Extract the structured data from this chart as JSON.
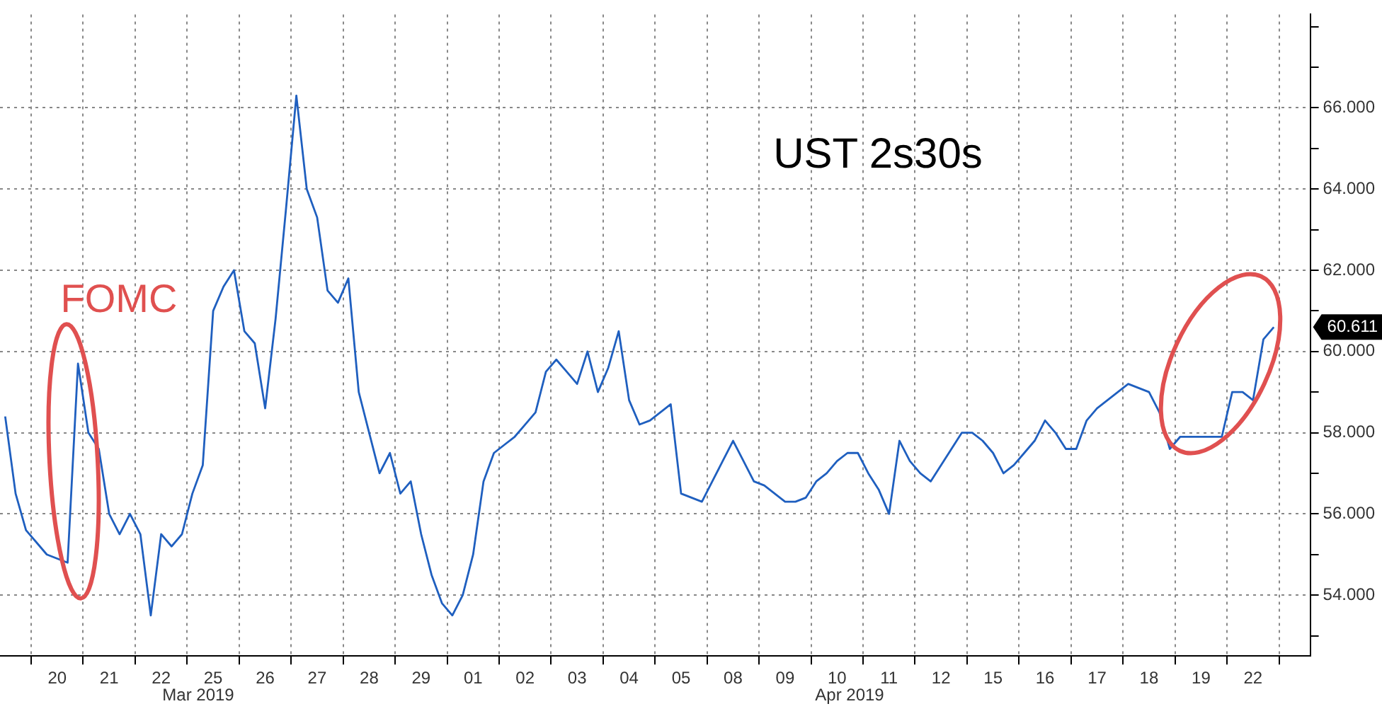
{
  "chart_data": {
    "type": "line",
    "title": "UST 2s30s",
    "categories": [
      null,
      null,
      null,
      null,
      null,
      "20",
      null,
      null,
      null,
      null,
      "21",
      null,
      null,
      null,
      null,
      "22",
      null,
      null,
      null,
      null,
      "25",
      null,
      null,
      null,
      null,
      "26",
      null,
      null,
      null,
      null,
      "27",
      null,
      null,
      null,
      null,
      "28",
      null,
      null,
      null,
      null,
      "29",
      null,
      null,
      null,
      null,
      "01",
      null,
      null,
      null,
      null,
      "02",
      null,
      null,
      null,
      null,
      "03",
      null,
      null,
      null,
      null,
      "04",
      null,
      null,
      null,
      null,
      "05",
      null,
      null,
      null,
      null,
      "08",
      null,
      null,
      null,
      null,
      "09",
      null,
      null,
      null,
      null,
      "10",
      null,
      null,
      null,
      null,
      "11",
      null,
      null,
      null,
      null,
      "12",
      null,
      null,
      null,
      null,
      "15",
      null,
      null,
      null,
      null,
      "16",
      null,
      null,
      null,
      null,
      "17",
      null,
      null,
      null,
      null,
      "18",
      null,
      null,
      null,
      null,
      "19",
      null,
      null,
      null,
      null,
      "22",
      null,
      null,
      null,
      null,
      null
    ],
    "ylim": [
      52.5,
      68.3
    ],
    "yticks": [
      {
        "value": 53,
        "label": null
      },
      {
        "value": 54,
        "label": "54.000"
      },
      {
        "value": 55,
        "label": null
      },
      {
        "value": 56,
        "label": "56.000"
      },
      {
        "value": 57,
        "label": null
      },
      {
        "value": 58,
        "label": "58.000"
      },
      {
        "value": 59,
        "label": null
      },
      {
        "value": 60,
        "label": "60.000"
      },
      {
        "value": 61,
        "label": null
      },
      {
        "value": 62,
        "label": "62.000"
      },
      {
        "value": 63,
        "label": null
      },
      {
        "value": 64,
        "label": "64.000"
      },
      {
        "value": 65,
        "label": null
      },
      {
        "value": 66,
        "label": "66.000"
      },
      {
        "value": 67,
        "label": null
      },
      {
        "value": 68,
        "label": null
      }
    ],
    "grid": true,
    "marker": "none",
    "annotations": [
      "FOMC",
      "60.611",
      "Mar 2019",
      "Apr 2019"
    ],
    "series": [
      {
        "color": "#1f5fbf",
        "values": [
          58.4,
          56.5,
          55.6,
          55.3,
          55.0,
          54.9,
          54.8,
          59.7,
          58.0,
          57.6,
          56.0,
          55.5,
          56.0,
          55.5,
          53.5,
          55.5,
          55.2,
          55.5,
          56.5,
          57.2,
          61.0,
          61.6,
          62.0,
          60.5,
          60.2,
          58.6,
          60.8,
          63.5,
          66.3,
          64.0,
          63.3,
          61.5,
          61.2,
          61.8,
          59.0,
          58.0,
          57.0,
          57.5,
          56.5,
          56.8,
          55.5,
          54.5,
          53.8,
          53.5,
          54.0,
          55.0,
          56.8,
          57.5,
          57.7,
          57.9,
          58.2,
          58.5,
          59.5,
          59.8,
          59.5,
          59.2,
          60.0,
          59.0,
          59.6,
          60.5,
          58.8,
          58.2,
          58.3,
          58.5,
          58.7,
          56.5,
          56.4,
          56.3,
          56.8,
          57.3,
          57.8,
          57.3,
          56.8,
          56.7,
          56.5,
          56.3,
          56.3,
          56.4,
          56.8,
          57.0,
          57.3,
          57.5,
          57.5,
          57.0,
          56.6,
          56.0,
          57.8,
          57.3,
          57.0,
          56.8,
          57.2,
          57.6,
          58.0,
          58.0,
          57.8,
          57.5,
          57.0,
          57.2,
          57.5,
          57.8,
          58.3,
          58.0,
          57.6,
          57.6,
          58.3,
          58.6,
          58.8,
          59.0,
          59.2,
          59.1,
          59.0,
          58.5,
          57.6,
          57.9,
          57.9,
          57.9,
          57.9,
          57.9,
          59.0,
          59.0,
          58.8,
          60.3,
          60.6,
          null,
          null,
          null
        ]
      }
    ]
  }
}
